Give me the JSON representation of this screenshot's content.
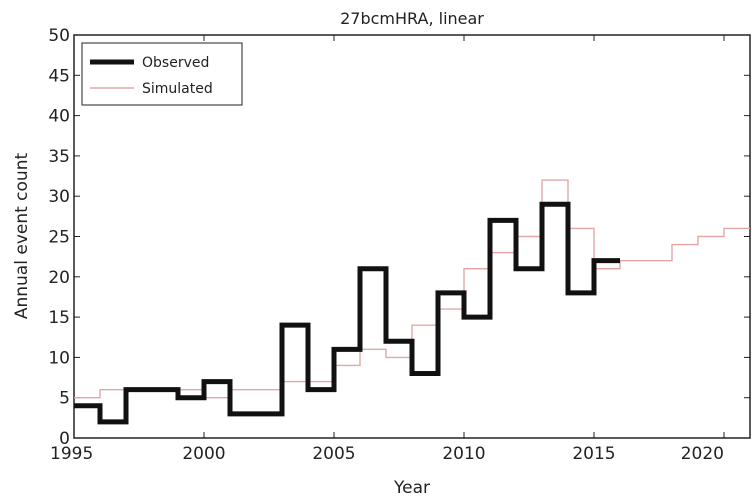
{
  "chart_data": {
    "type": "line",
    "step": "post",
    "title": "27bcmHRA, linear",
    "xlabel": "Year",
    "ylabel": "Annual event count",
    "xlim": [
      1995,
      2021
    ],
    "ylim": [
      0,
      50
    ],
    "xticks": [
      1995,
      2000,
      2005,
      2010,
      2015,
      2020
    ],
    "yticks": [
      0,
      5,
      10,
      15,
      20,
      25,
      30,
      35,
      40,
      45,
      50
    ],
    "grid": false,
    "legend_position": "top-left",
    "series": [
      {
        "name": "Observed",
        "color": "#111111",
        "style": "thick",
        "x": [
          1995,
          1996,
          1997,
          1998,
          1999,
          2000,
          2001,
          2002,
          2003,
          2004,
          2005,
          2006,
          2007,
          2008,
          2009,
          2010,
          2011,
          2012,
          2013,
          2014,
          2015,
          2016
        ],
        "y": [
          4,
          2,
          6,
          6,
          5,
          7,
          3,
          3,
          14,
          6,
          11,
          21,
          12,
          8,
          18,
          15,
          27,
          21,
          29,
          18,
          22,
          22
        ]
      },
      {
        "name": "Simulated",
        "color": "#e2a8a8",
        "style": "thin",
        "x": [
          1995,
          1996,
          1997,
          1998,
          1999,
          2000,
          2001,
          2002,
          2003,
          2004,
          2005,
          2006,
          2007,
          2008,
          2009,
          2010,
          2011,
          2012,
          2013,
          2014,
          2015,
          2016,
          2017,
          2018,
          2019,
          2020,
          2021
        ],
        "y": [
          5,
          6,
          6,
          6,
          6,
          5,
          6,
          6,
          7,
          7,
          9,
          11,
          10,
          14,
          16,
          21,
          23,
          25,
          32,
          26,
          21,
          22,
          22,
          24,
          25,
          26,
          26
        ]
      }
    ]
  }
}
